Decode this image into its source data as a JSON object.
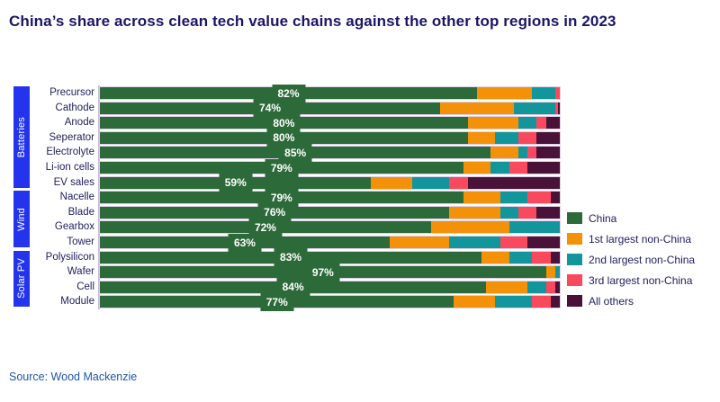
{
  "title": "China’s share across clean tech value chains against the other top regions in 2023",
  "source": "Source: Wood Mackenzie",
  "colors": {
    "china": "#2d6a39",
    "first_non_china": "#f39208",
    "second_non_china": "#13969b",
    "third_non_china": "#f9495d",
    "all_others": "#4a1239",
    "group_band": "#2334ec",
    "title_text": "#1b1568",
    "source_text": "#1e55a8",
    "axis_line": "#cbb9da"
  },
  "groups": [
    {
      "label": "Batteries",
      "row_span": 7
    },
    {
      "label": "Wind",
      "row_span": 4
    },
    {
      "label": "Solar PV",
      "row_span": 4
    }
  ],
  "legend": [
    {
      "label": "China",
      "color_key": "china"
    },
    {
      "label": "1st largest non-China",
      "color_key": "first_non_china"
    },
    {
      "label": "2nd largest non-China",
      "color_key": "second_non_china"
    },
    {
      "label": "3rd largest non-China",
      "color_key": "third_non_china"
    },
    {
      "label": "All others",
      "color_key": "all_others"
    }
  ],
  "chart_data": {
    "type": "bar",
    "orientation": "horizontal",
    "stacked": true,
    "unit": "%",
    "x_range": [
      0,
      100
    ],
    "grid": false,
    "legend_position": "right",
    "categories": [
      "Precursor",
      "Cathode",
      "Anode",
      "Seperator",
      "Electrolyte",
      "Li-ion cells",
      "EV sales",
      "Nacelle",
      "Blade",
      "Gearbox",
      "Tower",
      "Polysilicon",
      "Wafer",
      "Cell",
      "Module"
    ],
    "series": [
      {
        "name": "China",
        "values": [
          82,
          74,
          80,
          80,
          85,
          79,
          59,
          79,
          76,
          72,
          63,
          83,
          97,
          84,
          77
        ]
      },
      {
        "name": "1st largest non-China",
        "values": [
          12,
          16,
          11,
          6,
          6,
          6,
          9,
          8,
          11,
          17,
          13,
          6,
          2,
          9,
          9
        ]
      },
      {
        "name": "2nd largest non-China",
        "values": [
          5,
          9,
          4,
          5,
          2,
          4,
          8,
          6,
          4,
          11,
          11,
          5,
          1,
          4,
          8
        ]
      },
      {
        "name": "3rd largest non-China",
        "values": [
          1,
          0.6,
          2,
          4,
          2,
          4,
          4,
          5,
          4,
          0,
          6,
          4,
          0,
          2,
          4
        ]
      },
      {
        "name": "All others",
        "values": [
          0,
          0.4,
          3,
          5,
          5,
          7,
          20,
          2,
          5,
          0,
          7,
          2,
          0,
          1,
          2
        ]
      }
    ],
    "china_labels": [
      "82%",
      "74%",
      "80%",
      "80%",
      "85%",
      "79%",
      "59%",
      "79%",
      "76%",
      "72%",
      "63%",
      "83%",
      "97%",
      "84%",
      "77%"
    ]
  }
}
